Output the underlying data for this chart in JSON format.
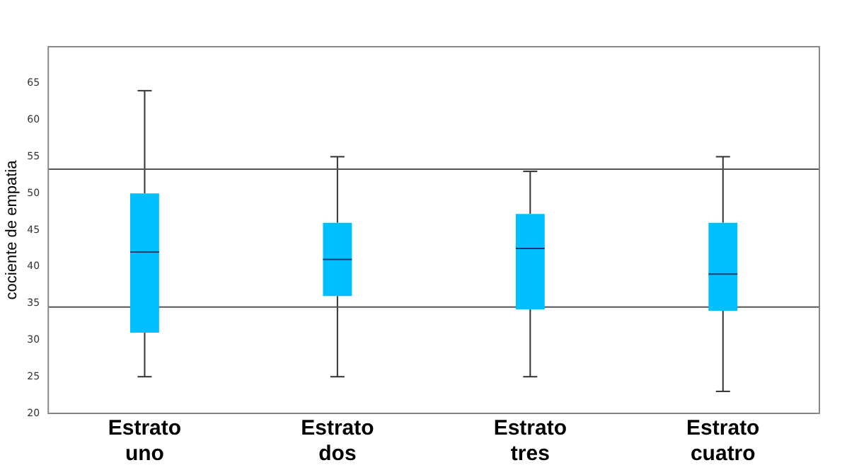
{
  "chart_data": {
    "type": "box",
    "ylabel": "cociente de empatia",
    "categories": [
      "Estrato uno",
      "Estrato dos",
      "Estrato tres",
      "Estrato cuatro"
    ],
    "color": "#00bfff",
    "boxes": [
      {
        "low": 25,
        "q1": 31,
        "median": 42,
        "q3": 50,
        "high": 64
      },
      {
        "low": 25,
        "q1": 36,
        "median": 41,
        "q3": 46,
        "high": 55
      },
      {
        "low": 25,
        "q1": 34.2,
        "median": 42.5,
        "q3": 47.2,
        "high": 53
      },
      {
        "low": 23,
        "q1": 34,
        "median": 39,
        "q3": 46,
        "high": 55
      }
    ],
    "ylim": [
      20,
      70
    ],
    "yticks": [
      20,
      25,
      30,
      35,
      40,
      45,
      50,
      55,
      60,
      65
    ],
    "ref_lines": [
      {
        "axis": "y",
        "value": 53.3,
        "color": "#555555"
      },
      {
        "axis": "y",
        "value": 34.5,
        "color": "#555555"
      }
    ],
    "grid": false,
    "legend": false
  }
}
